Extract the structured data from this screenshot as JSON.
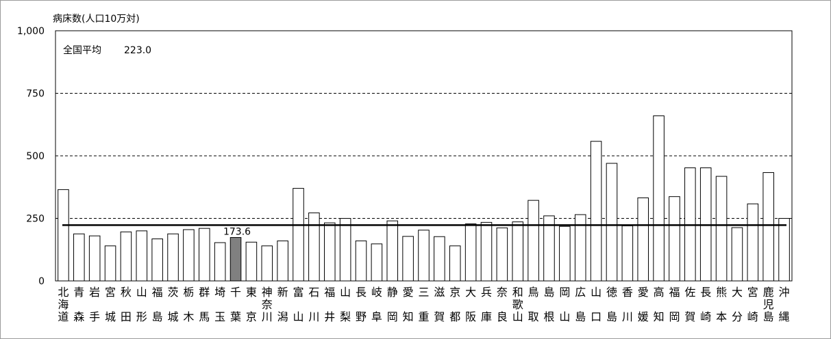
{
  "chart_data": {
    "type": "bar",
    "ylabel": "病床数(人口10万対)",
    "ylim": [
      0,
      1000
    ],
    "yticks": [
      0,
      250,
      500,
      750,
      1000
    ],
    "ytick_labels": [
      "0",
      "250",
      "500",
      "750",
      "1,000"
    ],
    "grid": "dashed horizontal at 250, 500, 750",
    "average": {
      "label": "全国平均",
      "value": 223.0,
      "value_text": "223.0"
    },
    "highlight": {
      "category": "千葉",
      "value": 173.6,
      "value_text": "173.6",
      "color": "#808080"
    },
    "bar_color": "#ffffff",
    "bar_edge_color": "#000000",
    "categories": [
      [
        "北",
        "海",
        "道"
      ],
      [
        "青",
        "",
        "森"
      ],
      [
        "岩",
        "",
        "手"
      ],
      [
        "宮",
        "",
        "城"
      ],
      [
        "秋",
        "",
        "田"
      ],
      [
        "山",
        "",
        "形"
      ],
      [
        "福",
        "",
        "島"
      ],
      [
        "茨",
        "",
        "城"
      ],
      [
        "栃",
        "",
        "木"
      ],
      [
        "群",
        "",
        "馬"
      ],
      [
        "埼",
        "",
        "玉"
      ],
      [
        "千",
        "",
        "葉"
      ],
      [
        "東",
        "",
        "京"
      ],
      [
        "神",
        "奈",
        "川"
      ],
      [
        "新",
        "",
        "潟"
      ],
      [
        "富",
        "",
        "山"
      ],
      [
        "石",
        "",
        "川"
      ],
      [
        "福",
        "",
        "井"
      ],
      [
        "山",
        "",
        "梨"
      ],
      [
        "長",
        "",
        "野"
      ],
      [
        "岐",
        "",
        "阜"
      ],
      [
        "静",
        "",
        "岡"
      ],
      [
        "愛",
        "",
        "知"
      ],
      [
        "三",
        "",
        "重"
      ],
      [
        "滋",
        "",
        "賀"
      ],
      [
        "京",
        "",
        "都"
      ],
      [
        "大",
        "",
        "阪"
      ],
      [
        "兵",
        "",
        "庫"
      ],
      [
        "奈",
        "",
        "良"
      ],
      [
        "和",
        "歌",
        "山"
      ],
      [
        "鳥",
        "",
        "取"
      ],
      [
        "島",
        "",
        "根"
      ],
      [
        "岡",
        "",
        "山"
      ],
      [
        "広",
        "",
        "島"
      ],
      [
        "山",
        "",
        "口"
      ],
      [
        "徳",
        "",
        "島"
      ],
      [
        "香",
        "",
        "川"
      ],
      [
        "愛",
        "",
        "媛"
      ],
      [
        "高",
        "",
        "知"
      ],
      [
        "福",
        "",
        "岡"
      ],
      [
        "佐",
        "",
        "賀"
      ],
      [
        "長",
        "",
        "崎"
      ],
      [
        "熊",
        "",
        "本"
      ],
      [
        "大",
        "",
        "分"
      ],
      [
        "宮",
        "",
        "崎"
      ],
      [
        "鹿",
        "児",
        "島"
      ],
      [
        "沖",
        "",
        "縄"
      ]
    ],
    "values": [
      365,
      188,
      180,
      140,
      196,
      200,
      168,
      188,
      205,
      210,
      153,
      173.6,
      155,
      140,
      160,
      370,
      272,
      232,
      250,
      160,
      148,
      240,
      178,
      203,
      177,
      140,
      228,
      234,
      212,
      236,
      322,
      260,
      218,
      265,
      558,
      470,
      220,
      332,
      660,
      337,
      452,
      452,
      418,
      213,
      308,
      433,
      250
    ]
  }
}
